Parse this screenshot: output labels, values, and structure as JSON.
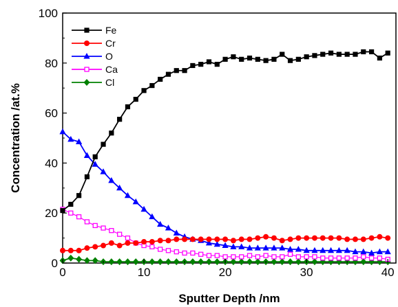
{
  "chart_data": {
    "type": "line",
    "title": "",
    "xlabel": "Sputter Depth /nm",
    "ylabel": "Concentration /at.%",
    "xlim": [
      0,
      41
    ],
    "ylim": [
      0,
      100
    ],
    "xticks": [
      0,
      10,
      20,
      30,
      40
    ],
    "yticks": [
      0,
      20,
      40,
      60,
      80,
      100
    ],
    "grid": false,
    "legend": "top-left",
    "x": [
      0,
      1,
      2,
      3,
      4,
      5,
      6,
      7,
      8,
      9,
      10,
      11,
      12,
      13,
      14,
      15,
      16,
      17,
      18,
      19,
      20,
      21,
      22,
      23,
      24,
      25,
      26,
      27,
      28,
      29,
      30,
      31,
      32,
      33,
      34,
      35,
      36,
      37,
      38,
      39,
      40
    ],
    "series": [
      {
        "name": "Fe",
        "color": "#000000",
        "marker": "square-filled",
        "values": [
          21,
          23.5,
          27,
          34.5,
          42.5,
          47.5,
          52,
          57.5,
          62.5,
          65.5,
          69,
          71,
          73.5,
          75.5,
          77,
          77,
          79,
          79.5,
          80.5,
          79.5,
          81.5,
          82.5,
          81.5,
          82,
          81.5,
          81,
          81.5,
          83.5,
          81,
          81.5,
          82.5,
          83,
          83.5,
          84,
          83.5,
          83.5,
          83.5,
          84.5,
          84.5,
          82,
          84
        ]
      },
      {
        "name": "Cr",
        "color": "#ff0000",
        "marker": "circle-filled",
        "values": [
          5,
          5,
          5,
          6,
          6.5,
          7,
          8,
          7,
          8,
          8,
          8.5,
          8.5,
          9,
          9,
          9.5,
          9.5,
          9.5,
          9.5,
          9.5,
          9.5,
          9.5,
          9,
          9.5,
          9.5,
          10,
          10.5,
          10,
          9,
          9.5,
          10,
          10,
          10,
          10,
          10,
          10,
          9.5,
          9.5,
          9.5,
          10,
          10.5,
          10
        ]
      },
      {
        "name": "O",
        "color": "#0000ff",
        "marker": "triangle-filled",
        "values": [
          52.5,
          49.5,
          48.5,
          43,
          39.5,
          36.5,
          33,
          30,
          27,
          24.5,
          21.5,
          18.5,
          15.5,
          14,
          12,
          10.5,
          9.5,
          9,
          8,
          7.5,
          7,
          6.5,
          6.5,
          6,
          6,
          6,
          6,
          6,
          5.5,
          5.5,
          5,
          5,
          5,
          5,
          5,
          5,
          4.5,
          4.5,
          4,
          4.5,
          4.5
        ]
      },
      {
        "name": "Ca",
        "color": "#ff00ff",
        "marker": "square-open",
        "values": [
          21.5,
          20,
          18.5,
          16.5,
          15,
          14,
          13,
          11.5,
          10,
          8,
          7,
          6.5,
          5.5,
          5,
          4.5,
          4,
          4,
          3.5,
          3,
          3,
          2.5,
          2.5,
          2.5,
          3,
          2.5,
          3,
          2.5,
          2.5,
          3.5,
          2.5,
          2.5,
          2.5,
          2,
          2,
          2,
          2,
          2,
          2.5,
          2,
          2,
          1.5
        ]
      },
      {
        "name": "Cl",
        "color": "#008000",
        "marker": "diamond-filled",
        "values": [
          1,
          2,
          1.5,
          1,
          1,
          0.5,
          0.5,
          0.5,
          0.5,
          0.5,
          0.5,
          0.5,
          0.5,
          0.5,
          0.5,
          0.5,
          0.5,
          0.5,
          0.5,
          0.5,
          0.5,
          0.5,
          0.5,
          0.5,
          0.5,
          0.5,
          0.5,
          0.5,
          0.5,
          0.5,
          0.5,
          0.5,
          0.5,
          0.5,
          0.5,
          0.5,
          0.5,
          0.5,
          0.5,
          0.5,
          0.5
        ]
      }
    ]
  }
}
